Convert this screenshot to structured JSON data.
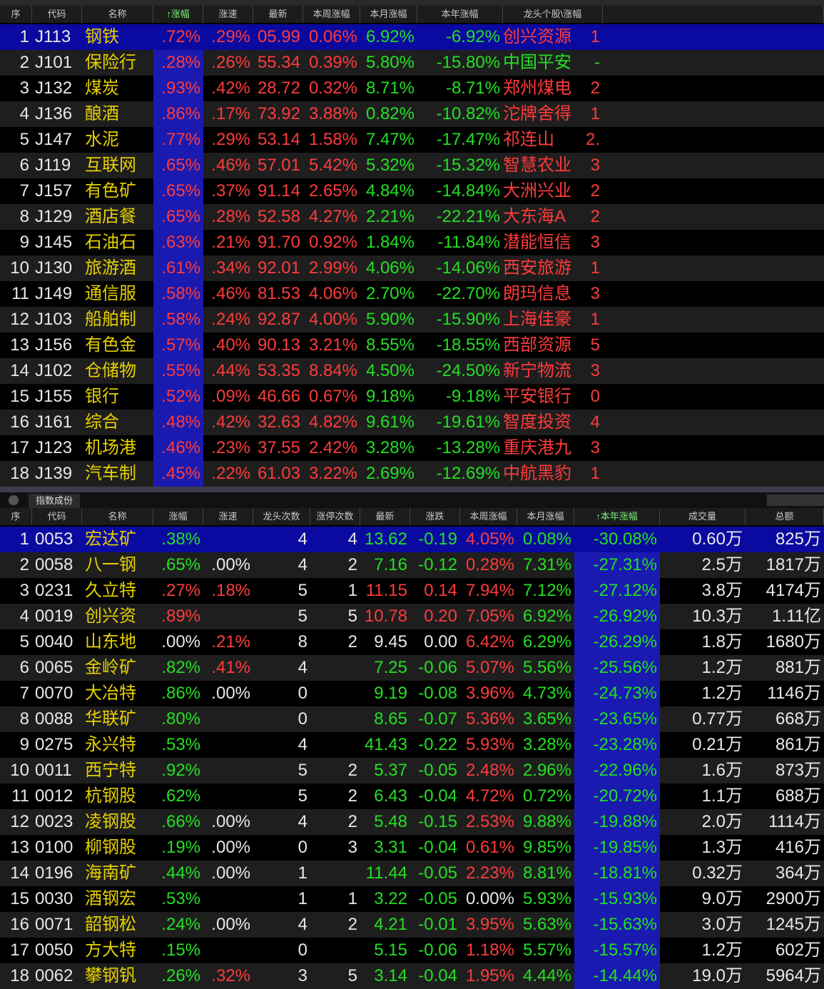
{
  "top_table": {
    "columns": [
      "序",
      "代码",
      "名称",
      "↑涨幅",
      "涨速",
      "最新",
      "本周涨幅",
      "本月涨幅",
      "本年涨幅",
      "龙头个股\\涨幅"
    ],
    "rows": [
      [
        "1",
        "J113",
        "钢铁",
        ".72%",
        ".29%",
        "05.99",
        "0.06%",
        "6.92%",
        "-6.92%",
        "创兴资源",
        "1"
      ],
      [
        "2",
        "J101",
        "保险行",
        ".28%",
        ".26%",
        "55.34",
        "0.39%",
        "5.80%",
        "-15.80%",
        "中国平安",
        "-"
      ],
      [
        "3",
        "J132",
        "煤炭",
        ".93%",
        ".42%",
        "28.72",
        "0.32%",
        "8.71%",
        "-8.71%",
        "郑州煤电",
        "2"
      ],
      [
        "4",
        "J136",
        "酿酒",
        ".86%",
        ".17%",
        "73.92",
        "3.88%",
        "0.82%",
        "-10.82%",
        "沱牌舍得",
        "1"
      ],
      [
        "5",
        "J147",
        "水泥",
        ".77%",
        ".29%",
        "53.14",
        "1.58%",
        "7.47%",
        "-17.47%",
        "祁连山",
        "2."
      ],
      [
        "6",
        "J119",
        "互联网",
        ".65%",
        ".46%",
        "57.01",
        "5.42%",
        "5.32%",
        "-15.32%",
        "智慧农业",
        "3"
      ],
      [
        "7",
        "J157",
        "有色矿",
        ".65%",
        ".37%",
        "91.14",
        "2.65%",
        "4.84%",
        "-14.84%",
        "大洲兴业",
        "2"
      ],
      [
        "8",
        "J129",
        "酒店餐",
        ".65%",
        ".28%",
        "52.58",
        "4.27%",
        "2.21%",
        "-22.21%",
        "大东海A",
        "2"
      ],
      [
        "9",
        "J145",
        "石油石",
        ".63%",
        ".21%",
        "91.70",
        "0.92%",
        "1.84%",
        "-11.84%",
        "潜能恒信",
        "3"
      ],
      [
        "10",
        "J130",
        "旅游酒",
        ".61%",
        ".34%",
        "92.01",
        "2.99%",
        "4.06%",
        "-14.06%",
        "西安旅游",
        "1"
      ],
      [
        "11",
        "J149",
        "通信服",
        ".58%",
        ".46%",
        "81.53",
        "4.06%",
        "2.70%",
        "-22.70%",
        "朗玛信息",
        "3"
      ],
      [
        "12",
        "J103",
        "船舶制",
        ".58%",
        ".24%",
        "92.87",
        "4.00%",
        "5.90%",
        "-15.90%",
        "上海佳豪",
        "1"
      ],
      [
        "13",
        "J156",
        "有色金",
        ".57%",
        ".40%",
        "90.13",
        "3.21%",
        "8.55%",
        "-18.55%",
        "西部资源",
        "5"
      ],
      [
        "14",
        "J102",
        "仓储物",
        ".55%",
        ".44%",
        "53.35",
        "8.84%",
        "4.50%",
        "-24.50%",
        "新宁物流",
        "3"
      ],
      [
        "15",
        "J155",
        "银行",
        ".52%",
        ".09%",
        "46.66",
        "0.67%",
        "9.18%",
        "-9.18%",
        "平安银行",
        "0"
      ],
      [
        "16",
        "J161",
        "综合",
        ".48%",
        ".42%",
        "32.63",
        "4.82%",
        "9.61%",
        "-19.61%",
        "智度投资",
        "4"
      ],
      [
        "17",
        "J123",
        "机场港",
        ".46%",
        ".23%",
        "37.55",
        "2.42%",
        "3.28%",
        "-13.28%",
        "重庆港九",
        "3"
      ],
      [
        "18",
        "J139",
        "汽车制",
        ".45%",
        ".22%",
        "61.03",
        "3.22%",
        "2.69%",
        "-12.69%",
        "中航黑豹",
        "1"
      ]
    ]
  },
  "bottom_tab": "指数成份",
  "bottom_table": {
    "columns": [
      "序",
      "代码",
      "名称",
      "涨幅",
      "涨速",
      "龙头次数",
      "涨停次数",
      "最新",
      "涨跌",
      "本周涨幅",
      "本月涨幅",
      "↑本年涨幅",
      "成交量",
      "总额"
    ],
    "rows": [
      [
        "1",
        "0053",
        "宏达矿",
        ".38%",
        "",
        "4",
        "4",
        "13.62",
        "-0.19",
        "4.05%",
        "0.08%",
        "-30.08%",
        "0.60万",
        "825万"
      ],
      [
        "2",
        "0058",
        "八一钢",
        ".65%",
        ".00%",
        "4",
        "2",
        "7.16",
        "-0.12",
        "0.28%",
        "7.31%",
        "-27.31%",
        "2.5万",
        "1817万"
      ],
      [
        "3",
        "0231",
        "久立特",
        ".27%",
        ".18%",
        "5",
        "1",
        "11.15",
        "0.14",
        "7.94%",
        "7.12%",
        "-27.12%",
        "3.8万",
        "4174万"
      ],
      [
        "4",
        "0019",
        "创兴资",
        ".89%",
        "",
        "5",
        "5",
        "10.78",
        "0.20",
        "7.05%",
        "6.92%",
        "-26.92%",
        "10.3万",
        "1.11亿"
      ],
      [
        "5",
        "0040",
        "山东地",
        ".00%",
        ".21%",
        "8",
        "2",
        "9.45",
        "0.00",
        "6.42%",
        "6.29%",
        "-26.29%",
        "1.8万",
        "1680万"
      ],
      [
        "6",
        "0065",
        "金岭矿",
        ".82%",
        ".41%",
        "4",
        "",
        "7.25",
        "-0.06",
        "5.07%",
        "5.56%",
        "-25.56%",
        "1.2万",
        "881万"
      ],
      [
        "7",
        "0070",
        "大冶特",
        ".86%",
        ".00%",
        "0",
        "",
        "9.19",
        "-0.08",
        "3.96%",
        "4.73%",
        "-24.73%",
        "1.2万",
        "1146万"
      ],
      [
        "8",
        "0088",
        "华联矿",
        ".80%",
        "",
        "0",
        "",
        "8.65",
        "-0.07",
        "5.36%",
        "3.65%",
        "-23.65%",
        "0.77万",
        "668万"
      ],
      [
        "9",
        "0275",
        "永兴特",
        ".53%",
        "",
        "4",
        "",
        "41.43",
        "-0.22",
        "5.93%",
        "3.28%",
        "-23.28%",
        "0.21万",
        "861万"
      ],
      [
        "10",
        "0011",
        "西宁特",
        ".92%",
        "",
        "5",
        "2",
        "5.37",
        "-0.05",
        "2.48%",
        "2.96%",
        "-22.96%",
        "1.6万",
        "873万"
      ],
      [
        "11",
        "0012",
        "杭钢股",
        ".62%",
        "",
        "5",
        "2",
        "6.43",
        "-0.04",
        "4.72%",
        "0.72%",
        "-20.72%",
        "1.1万",
        "688万"
      ],
      [
        "12",
        "0023",
        "凌钢股",
        ".66%",
        ".00%",
        "4",
        "2",
        "5.48",
        "-0.15",
        "2.53%",
        "9.88%",
        "-19.88%",
        "2.0万",
        "1114万"
      ],
      [
        "13",
        "0100",
        "柳钢股",
        ".19%",
        ".00%",
        "0",
        "3",
        "3.31",
        "-0.04",
        "0.61%",
        "9.85%",
        "-19.85%",
        "1.3万",
        "416万"
      ],
      [
        "14",
        "0196",
        "海南矿",
        ".44%",
        ".00%",
        "1",
        "",
        "11.44",
        "-0.05",
        "2.23%",
        "8.81%",
        "-18.81%",
        "0.32万",
        "364万"
      ],
      [
        "15",
        "0030",
        "酒钢宏",
        ".53%",
        "",
        "1",
        "1",
        "3.22",
        "-0.05",
        "0.00%",
        "5.93%",
        "-15.93%",
        "9.0万",
        "2900万"
      ],
      [
        "16",
        "0071",
        "韶钢松",
        ".24%",
        ".00%",
        "4",
        "2",
        "4.21",
        "-0.01",
        "3.95%",
        "5.63%",
        "-15.63%",
        "3.0万",
        "1245万"
      ],
      [
        "17",
        "0050",
        "方大特",
        ".15%",
        "",
        "0",
        "",
        "5.15",
        "-0.06",
        "1.18%",
        "5.57%",
        "-15.57%",
        "1.2万",
        "602万"
      ],
      [
        "18",
        "0062",
        "攀钢钒",
        ".26%",
        ".32%",
        "3",
        "5",
        "3.14",
        "-0.04",
        "1.95%",
        "4.44%",
        "-14.44%",
        "19.0万",
        "5964万"
      ]
    ]
  }
}
